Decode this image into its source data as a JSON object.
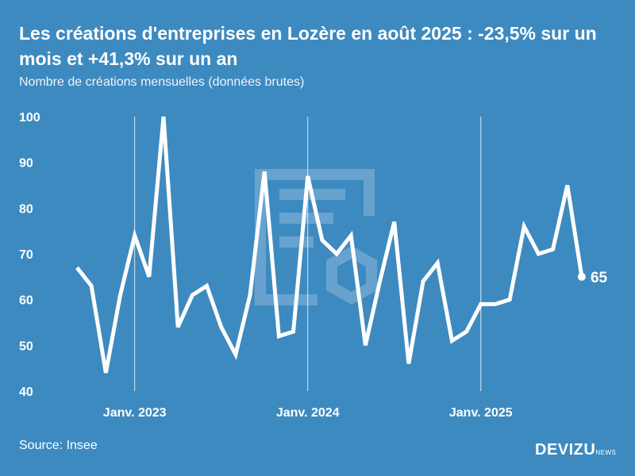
{
  "title": "Les créations d'entreprises en Lozère en août 2025 : -23,5% sur un mois et +41,3% sur un an",
  "subtitle": "Nombre de créations mensuelles (données brutes)",
  "source": "Source: Insee",
  "logo": {
    "name": "DEVIZU",
    "suffix": "NEWS"
  },
  "colors": {
    "background": "#3d8ac0",
    "line": "#ffffff"
  },
  "chart_data": {
    "type": "line",
    "title": "Les créations d'entreprises en Lozère en août 2025 : -23,5% sur un mois et +41,3% sur un an",
    "ylabel": "Nombre de créations mensuelles (données brutes)",
    "x_start": "2022-09",
    "x_end": "2025-08",
    "values": [
      67,
      63,
      44,
      61,
      74,
      65,
      100,
      54,
      61,
      63,
      54,
      48,
      61,
      88,
      52,
      53,
      87,
      73,
      70,
      74,
      50,
      64,
      77,
      46,
      64,
      68,
      51,
      53,
      59,
      59,
      60,
      76,
      70,
      71,
      85,
      65
    ],
    "ylim": [
      40,
      100
    ],
    "yticks": [
      40,
      50,
      60,
      70,
      80,
      90,
      100
    ],
    "xticks": [
      {
        "index": 4,
        "label": "Janv. 2023"
      },
      {
        "index": 16,
        "label": "Janv. 2024"
      },
      {
        "index": 28,
        "label": "Janv. 2025"
      }
    ],
    "last_label": "65",
    "grid": false
  }
}
